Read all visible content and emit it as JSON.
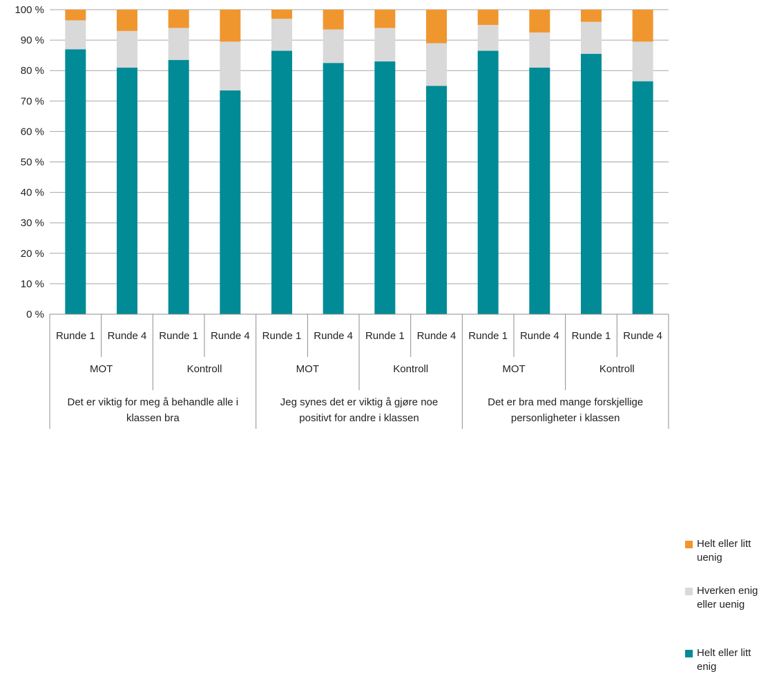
{
  "chart_data": {
    "type": "bar",
    "stacked": true,
    "title": "",
    "xlabel": "",
    "ylabel": "",
    "ylim": [
      0,
      100
    ],
    "y_ticks": [
      "0 %",
      "10 %",
      "20 %",
      "30 %",
      "40 %",
      "50 %",
      "60 %",
      "70 %",
      "80 %",
      "90 %",
      "100 %"
    ],
    "grid": true,
    "legend_position": "right",
    "categories": [
      "Runde 1",
      "Runde 4",
      "Runde 1",
      "Runde 4",
      "Runde 1",
      "Runde 4",
      "Runde 1",
      "Runde 4",
      "Runde 1",
      "Runde 4",
      "Runde 1",
      "Runde 4"
    ],
    "groups": [
      {
        "label": "MOT"
      },
      {
        "label": "Kontroll"
      },
      {
        "label": "MOT"
      },
      {
        "label": "Kontroll"
      },
      {
        "label": "MOT"
      },
      {
        "label": "Kontroll"
      }
    ],
    "statements": [
      {
        "line1": "Det er viktig for meg å behandle alle i",
        "line2": "klassen bra"
      },
      {
        "line1": "Jeg synes det er viktig å gjøre noe",
        "line2": "positivt for andre i klassen"
      },
      {
        "line1": "Det er bra med mange forskjellige",
        "line2": "personligheter i klassen"
      }
    ],
    "series": [
      {
        "name_line1": "Helt eller litt",
        "name_line2": "enig",
        "color": "#008b96",
        "values": [
          87,
          81,
          83.5,
          73.5,
          86.5,
          82.5,
          83,
          75,
          86.5,
          81,
          85.5,
          76.5
        ]
      },
      {
        "name_line1": "Hverken enig",
        "name_line2": "eller uenig",
        "color": "#d9d9d9",
        "values": [
          9.5,
          12,
          10.5,
          16,
          10.5,
          11,
          11,
          14,
          8.5,
          11.5,
          10.5,
          13
        ]
      },
      {
        "name_line1": "Helt eller litt",
        "name_line2": "uenig",
        "color": "#f0962f",
        "values": [
          3.5,
          7,
          6,
          10.5,
          3,
          6.5,
          6,
          11,
          5,
          7.5,
          4,
          10.5
        ]
      }
    ]
  }
}
